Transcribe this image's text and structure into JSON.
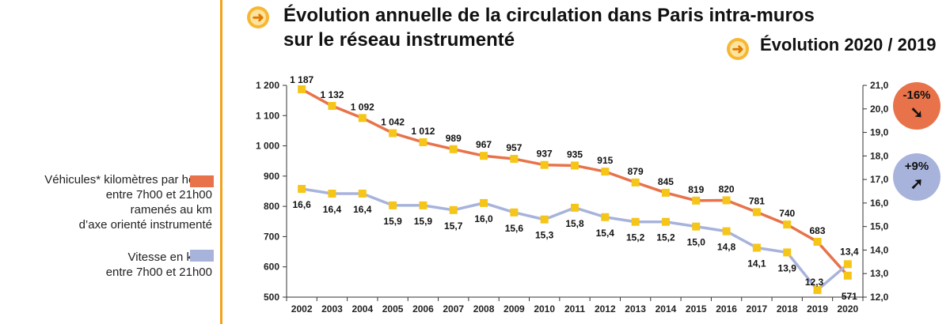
{
  "title_line1": "Évolution annuelle de la circulation dans Paris intra-muros",
  "title_line2": "sur le réseau instrumenté",
  "evolution_title": "Évolution 2020 / 2019",
  "legend": [
    {
      "label": "Véhicules* kilomètres par heure\nentre 7h00 et 21h00\nramenés au km\nd’axe orienté instrumenté",
      "color": "#e8734a"
    },
    {
      "label": "Vitesse en km/h\nentre 7h00 et 21h00",
      "color": "#a8b3dc"
    }
  ],
  "evolution": [
    {
      "value": "-16%",
      "color": "#e8734a",
      "icon": "arrow-down-right-icon"
    },
    {
      "value": "+9%",
      "color": "#a8b3dc",
      "icon": "arrow-up-right-icon"
    }
  ],
  "colors": {
    "accent": "#f3a21b",
    "marker": "#f5c518"
  },
  "chart_data": {
    "type": "line",
    "categories": [
      "2002",
      "2003",
      "2004",
      "2005",
      "2006",
      "2007",
      "2008",
      "2009",
      "2010",
      "2011",
      "2012",
      "2013",
      "2014",
      "2015",
      "2016",
      "2017",
      "2018",
      "2019",
      "2020"
    ],
    "series": [
      {
        "values": [
          1187,
          1132,
          1092,
          1042,
          1012,
          989,
          967,
          957,
          937,
          935,
          915,
          879,
          845,
          819,
          820,
          781,
          740,
          683,
          571
        ],
        "labels": [
          "1 187",
          "1 132",
          "1 092",
          "1 042",
          "1 012",
          "989",
          "967",
          "957",
          "937",
          "935",
          "915",
          "879",
          "845",
          "819",
          "820",
          "781",
          "740",
          "683",
          "571"
        ],
        "axis": "left",
        "color": "#e8734a"
      },
      {
        "values": [
          16.6,
          16.4,
          16.4,
          15.9,
          15.9,
          15.7,
          16.0,
          15.6,
          15.3,
          15.8,
          15.4,
          15.2,
          15.2,
          15.0,
          14.8,
          14.1,
          13.9,
          12.3,
          13.4
        ],
        "labels": [
          "16,6",
          "16,4",
          "16,4",
          "15,9",
          "15,9",
          "15,7",
          "16,0",
          "15,6",
          "15,3",
          "15,8",
          "15,4",
          "15,2",
          "15,2",
          "15,0",
          "14,8",
          "14,1",
          "13,9",
          "12,3",
          "13,4"
        ],
        "axis": "right",
        "color": "#a8b3dc"
      }
    ],
    "ylim_left": [
      500,
      1200
    ],
    "yticks_left": [
      "500",
      "600",
      "700",
      "800",
      "900",
      "1 000",
      "1 100",
      "1 200"
    ],
    "ylim_right": [
      12.0,
      21.0
    ],
    "yticks_right": [
      "12,0",
      "13,0",
      "14,0",
      "15,0",
      "16,0",
      "17,0",
      "18,0",
      "19,0",
      "20,0",
      "21,0"
    ],
    "grid": false,
    "legend_position": "left"
  }
}
